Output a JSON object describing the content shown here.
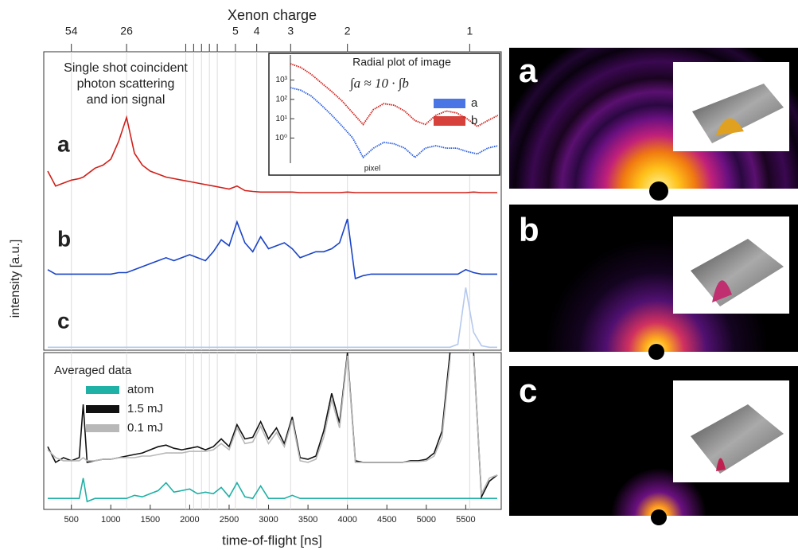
{
  "chart_data": [
    {
      "type": "line",
      "annotation": [
        "Single shot coincident",
        "photon scattering",
        "and ion signal"
      ],
      "x2label": "Xenon charge",
      "ylabel": "intensity [a.u.]",
      "xlim": [
        150,
        5950
      ],
      "ylim": [
        0,
        100
      ],
      "x2ticks": [
        {
          "value": 500,
          "label": "54"
        },
        {
          "value": 1200,
          "label": "26"
        },
        {
          "value": 2580,
          "label": "5"
        },
        {
          "value": 2850,
          "label": "4"
        },
        {
          "value": 3280,
          "label": "3"
        },
        {
          "value": 4000,
          "label": "2"
        },
        {
          "value": 5550,
          "label": "1"
        }
      ],
      "x2minor": [
        1950,
        2050,
        2150,
        2250,
        2350
      ],
      "x": [
        200,
        300,
        400,
        500,
        600,
        650,
        700,
        800,
        900,
        1000,
        1100,
        1200,
        1300,
        1400,
        1500,
        1600,
        1700,
        1800,
        1900,
        2000,
        2100,
        2200,
        2300,
        2400,
        2500,
        2600,
        2700,
        2800,
        2900,
        3000,
        3100,
        3200,
        3300,
        3400,
        3500,
        3600,
        3700,
        3800,
        3900,
        4000,
        4100,
        4200,
        4300,
        4400,
        4500,
        4600,
        4700,
        4800,
        4900,
        5000,
        5100,
        5200,
        5300,
        5400,
        5500,
        5600,
        5700,
        5800,
        5900
      ],
      "series": [
        {
          "name": "a",
          "color": "#d0201a",
          "values": [
            60,
            55,
            56,
            57,
            57.5,
            58,
            59,
            61,
            62,
            64,
            70,
            78,
            66,
            62,
            60,
            59,
            58,
            57.5,
            57,
            56.5,
            56,
            55.5,
            55,
            54.5,
            54,
            55,
            53.5,
            53.2,
            53,
            53,
            53,
            53,
            53,
            52.8,
            52.8,
            52.8,
            52.8,
            52.8,
            52.8,
            53,
            52.8,
            52.8,
            52.8,
            52.8,
            52.8,
            52.8,
            52.8,
            52.8,
            52.8,
            52.8,
            52.8,
            52.8,
            52.8,
            52.8,
            52.8,
            53,
            52.8,
            52.8,
            52.8
          ]
        },
        {
          "name": "b",
          "color": "#1a44c8",
          "values": [
            27,
            25.5,
            25.5,
            25.5,
            25.5,
            25.5,
            25.5,
            25.5,
            25.5,
            25.5,
            26,
            26,
            27,
            28,
            29,
            30,
            31,
            30,
            31,
            32,
            31,
            30,
            33,
            37,
            35,
            43,
            36,
            33,
            38,
            34,
            35,
            36,
            34,
            31,
            32,
            33,
            33,
            34,
            36,
            44,
            24,
            25,
            25.5,
            25.5,
            25.5,
            25.5,
            25.5,
            25.5,
            25.5,
            25.5,
            25.5,
            25.5,
            25.5,
            25.5,
            27,
            26,
            25.5,
            25.5,
            25.5
          ]
        },
        {
          "name": "c",
          "color": "#b5c8ee",
          "values": [
            1,
            1,
            1,
            1,
            1,
            1,
            1,
            1,
            1,
            1,
            1,
            1,
            1,
            1,
            1,
            1,
            1,
            1,
            1,
            1,
            1,
            1,
            1,
            1,
            1,
            1,
            1,
            1,
            1,
            1,
            1,
            1,
            1,
            1,
            1,
            1,
            1,
            1,
            1,
            1,
            1,
            1,
            1,
            1,
            1,
            1,
            1,
            1,
            1,
            1,
            1,
            1,
            1,
            2,
            21,
            6,
            1.5,
            1,
            1
          ]
        }
      ]
    },
    {
      "type": "line",
      "title": "Radial plot of image",
      "annotation": "∫a ≈ 10 · ∫b",
      "xlabel": "pixel",
      "xlim": [
        0,
        100
      ],
      "ylim": [
        0.05,
        20000
      ],
      "log_y": true,
      "yticks": [
        {
          "value": 1,
          "label": "10⁰"
        },
        {
          "value": 10,
          "label": "10¹"
        },
        {
          "value": 100,
          "label": "10²"
        },
        {
          "value": 1000,
          "label": "10³"
        }
      ],
      "legend": "upper right",
      "x": [
        0,
        5,
        10,
        15,
        20,
        25,
        30,
        35,
        40,
        45,
        50,
        55,
        60,
        65,
        70,
        75,
        80,
        85,
        90,
        95,
        100
      ],
      "series": [
        {
          "name": "a",
          "color": "#2a5ee0",
          "values": [
            400,
            300,
            150,
            50,
            15,
            4,
            1,
            0.1,
            0.3,
            0.6,
            0.5,
            0.3,
            0.1,
            0.3,
            0.4,
            0.3,
            0.3,
            0.2,
            0.15,
            0.3,
            0.4
          ]
        },
        {
          "name": "b",
          "color": "#d0201a",
          "values": [
            7000,
            4500,
            2000,
            700,
            250,
            80,
            20,
            5,
            30,
            60,
            50,
            25,
            8,
            5,
            15,
            25,
            20,
            10,
            4,
            8,
            15
          ]
        }
      ]
    },
    {
      "type": "line",
      "title": "Averaged data",
      "xlabel": "time-of-flight [ns]",
      "xlim": [
        150,
        5950
      ],
      "ylim": [
        0,
        100
      ],
      "xticks": [
        500,
        1000,
        1500,
        2000,
        2500,
        3000,
        3500,
        4000,
        4500,
        5000,
        5500
      ],
      "legend": "upper left",
      "x": [
        200,
        300,
        400,
        500,
        600,
        650,
        700,
        800,
        900,
        1000,
        1100,
        1200,
        1300,
        1400,
        1500,
        1600,
        1700,
        1800,
        1900,
        2000,
        2100,
        2200,
        2300,
        2400,
        2500,
        2600,
        2700,
        2800,
        2900,
        3000,
        3100,
        3200,
        3300,
        3400,
        3500,
        3600,
        3700,
        3800,
        3900,
        4000,
        4100,
        4200,
        4300,
        4400,
        4500,
        4600,
        4700,
        4800,
        4900,
        5000,
        5100,
        5200,
        5300,
        5400,
        5500,
        5600,
        5700,
        5800,
        5900
      ],
      "series": [
        {
          "name": "atom",
          "color": "#1fb0a6",
          "values": [
            7,
            7,
            7,
            7,
            7,
            20,
            5,
            7,
            7,
            7,
            7,
            7,
            9,
            8,
            10,
            12,
            17,
            11,
            12,
            13,
            10,
            11,
            10,
            14,
            8,
            17,
            8,
            7,
            15,
            7,
            7,
            7,
            9,
            7,
            7,
            7,
            7,
            7,
            7,
            7,
            7,
            7,
            7,
            7,
            7,
            7,
            7,
            7,
            7,
            7,
            7,
            7,
            7,
            7,
            7,
            7,
            7,
            7,
            7
          ]
        },
        {
          "name": "1.5 mJ",
          "color": "#111111",
          "values": [
            40,
            30,
            33,
            31,
            33,
            67,
            30,
            31,
            32,
            32,
            33,
            34,
            35,
            36,
            38,
            40,
            41,
            39,
            38,
            39,
            40,
            38,
            40,
            45,
            40,
            54,
            45,
            46,
            56,
            45,
            52,
            42,
            59,
            33,
            32,
            34,
            50,
            74,
            55,
            100,
            31,
            30,
            30,
            30,
            30,
            30,
            30,
            31,
            31,
            32,
            36,
            50,
            100,
            null,
            null,
            100,
            8,
            18,
            22
          ]
        },
        {
          "name": "0.1 mJ",
          "color": "#b8b8b8",
          "values": [
            38,
            33,
            31,
            31,
            31,
            33,
            31,
            31,
            32,
            32,
            33,
            33,
            33,
            34,
            34,
            35,
            36,
            36,
            36,
            37,
            37,
            37,
            38,
            42,
            38,
            52,
            42,
            43,
            53,
            42,
            49,
            40,
            57,
            31,
            30,
            32,
            46,
            70,
            52,
            98,
            30,
            30,
            30,
            30,
            30,
            30,
            30,
            30.5,
            30.5,
            31,
            34,
            46,
            95,
            null,
            null,
            98,
            10,
            20,
            22
          ]
        }
      ]
    }
  ],
  "images": {
    "labels": [
      "a",
      "b",
      "c"
    ]
  }
}
